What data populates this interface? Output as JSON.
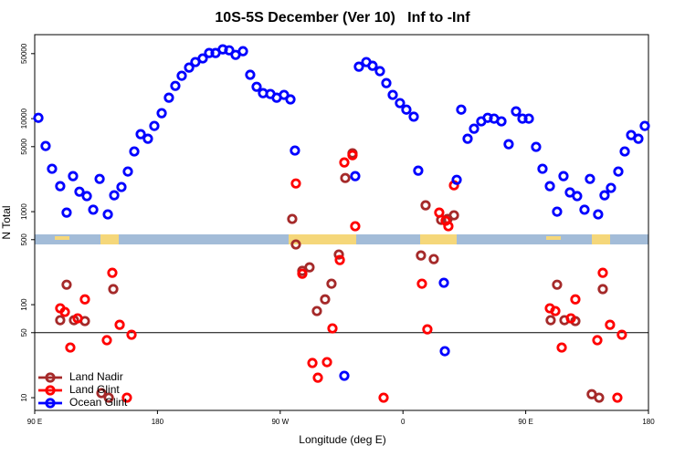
{
  "chart_data": {
    "type": "scatter",
    "title": "10S-5S December (Ver 10)   Inf to -Inf",
    "x_label": "Longitude (deg E)",
    "y_label": "N Total",
    "log_y": true,
    "legend": "bottom-left",
    "xlim": [
      90,
      540
    ],
    "ylim": [
      7.3,
      80000
    ],
    "xticks": [
      {
        "value": 90,
        "label": "90 E"
      },
      180,
      {
        "value": 270,
        "label": "90 W"
      },
      {
        "value": 360,
        "label": "0"
      },
      {
        "value": 450,
        "label": "90 E"
      },
      {
        "value": 540,
        "label": "180"
      }
    ],
    "yticks": [
      10,
      50,
      100,
      500,
      1000,
      5000,
      10000,
      50000
    ],
    "hline": 50,
    "series": [
      {
        "name": "Land Nadir",
        "color": "#a52a2a",
        "x": [
          108.7,
          113.4,
          118.8,
          126.8,
          138.9,
          144.3,
          147.6,
          278.8,
          281.5,
          286.2,
          291.5,
          296.9,
          302.9,
          307.6,
          313.0,
          317.7,
          323.0,
          373.2,
          376.6,
          382.6,
          388.0,
          392.7,
          397.4,
          468.3,
          473.0,
          478.4,
          486.4,
          498.4,
          503.8,
          506.5
        ],
        "values": [
          68.1,
          164,
          68.1,
          66.6,
          11.2,
          10,
          147,
          835,
          444,
          231,
          252,
          85.4,
          114,
          168,
          346,
          2300,
          4240,
          338,
          1170,
          309,
          816,
          835,
          914,
          68.1,
          164,
          68.1,
          66.6,
          10.9,
          10,
          147
        ]
      },
      {
        "name": "Land Glint",
        "color": "#ff0000",
        "x": [
          108.7,
          112.1,
          116.1,
          121.5,
          126.8,
          142.9,
          146.9,
          152.3,
          157.6,
          161.0,
          281.5,
          286.2,
          293.6,
          297.6,
          304.3,
          308.3,
          313.7,
          317.0,
          323.0,
          325.0,
          345.8,
          373.9,
          377.9,
          386.6,
          391.3,
          393.3,
          397.4,
          467.7,
          471.7,
          476.4,
          483.1,
          486.4,
          502.5,
          506.5,
          511.8,
          517.2,
          520.5
        ],
        "values": [
          91.4,
          83.5,
          34.6,
          71.3,
          114,
          41.5,
          220,
          60.8,
          10,
          47.5,
          2010,
          215,
          23.6,
          16.4,
          24.1,
          55.6,
          302,
          3380,
          4050,
          697,
          10,
          168,
          54.3,
          977,
          798,
          697,
          1920,
          91.4,
          85.4,
          34.6,
          71.3,
          114,
          41.5,
          220,
          60.8,
          10,
          47.5
        ]
      },
      {
        "name": "Ocean Glint",
        "color": "#0000ff",
        "x": [
          92.7,
          98.0,
          102.7,
          108.7,
          113.4,
          118.1,
          122.8,
          128.2,
          132.9,
          137.6,
          143.6,
          148.3,
          153.6,
          158.3,
          163.0,
          167.7,
          173.0,
          177.7,
          183.1,
          188.4,
          193.1,
          197.8,
          203.2,
          207.8,
          213.2,
          217.9,
          222.6,
          227.9,
          232.6,
          237.3,
          242.7,
          248.0,
          252.7,
          257.4,
          262.8,
          267.4,
          272.8,
          277.5,
          280.8,
          317.0,
          325.0,
          327.7,
          333.1,
          337.7,
          343.1,
          347.8,
          352.5,
          357.8,
          362.5,
          367.9,
          371.2,
          390.0,
          390.7,
          399.4,
          402.7,
          407.4,
          412.1,
          417.4,
          422.1,
          426.8,
          432.2,
          437.5,
          442.9,
          447.6,
          452.3,
          457.6,
          462.3,
          467.7,
          473.0,
          477.7,
          482.4,
          487.7,
          493.1,
          497.1,
          503.1,
          507.8,
          512.5,
          517.9,
          522.6,
          527.3,
          532.6,
          537.3
        ],
        "values": [
          10200,
          5080,
          2890,
          1880,
          977,
          2410,
          1640,
          1470,
          1050,
          2250,
          935,
          1500,
          1840,
          2700,
          4440,
          6810,
          6080,
          8350,
          11450,
          16800,
          22500,
          28900,
          35400,
          40600,
          44400,
          50800,
          50800,
          55600,
          54300,
          48500,
          53100,
          29600,
          22000,
          18800,
          18400,
          16800,
          18000,
          16100,
          4540,
          17.2,
          2410,
          36200,
          40600,
          37000,
          32400,
          24100,
          18000,
          14700,
          12500,
          10500,
          2760,
          172,
          31.6,
          2200,
          12500,
          6080,
          7800,
          9350,
          10200,
          10000,
          9350,
          5310,
          11970,
          10000,
          10000,
          4970,
          2890,
          1880,
          1000,
          2410,
          1610,
          1470,
          1050,
          2250,
          935,
          1500,
          1800,
          2700,
          4440,
          6660,
          6080,
          8350
        ]
      }
    ]
  }
}
